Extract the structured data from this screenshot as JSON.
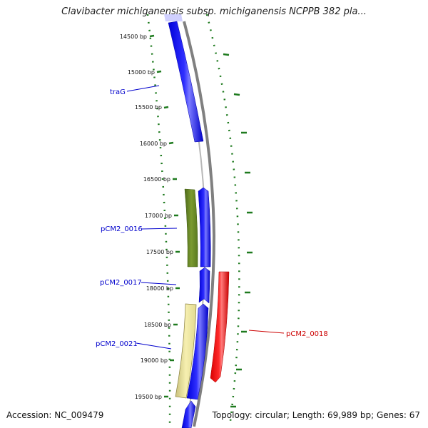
{
  "title": "Clavibacter michiganensis subsp. michiganensis NCPPB 382 pla...",
  "accession": "Accession: NC_009479",
  "summary": "Topology: circular; Length: 69,989 bp; Genes: 67",
  "ruler_ticks": [
    {
      "bp": 14500,
      "label": "14500 bp"
    },
    {
      "bp": 15000,
      "label": "15000 bp"
    },
    {
      "bp": 15500,
      "label": "15500 bp"
    },
    {
      "bp": 16000,
      "label": "16000 bp"
    },
    {
      "bp": 16500,
      "label": "16500 bp"
    },
    {
      "bp": 17000,
      "label": "17000 bp"
    },
    {
      "bp": 17500,
      "label": "17500 bp"
    },
    {
      "bp": 18000,
      "label": "18000 bp"
    },
    {
      "bp": 18500,
      "label": "18500 bp"
    },
    {
      "bp": 19000,
      "label": "19000 bp"
    },
    {
      "bp": 19500,
      "label": "19500 bp"
    }
  ],
  "gene_labels": [
    {
      "id": "traG",
      "label": "traG",
      "color": "#0000cc"
    },
    {
      "id": "pCM2_0016",
      "label": "pCM2_0016",
      "color": "#0000cc"
    },
    {
      "id": "pCM2_0017",
      "label": "pCM2_0017",
      "color": "#0000cc"
    },
    {
      "id": "pCM2_0018",
      "label": "pCM2_0018",
      "color": "#cc0000"
    },
    {
      "id": "pCM2_0021",
      "label": "pCM2_0021",
      "color": "#0000cc"
    }
  ],
  "colors": {
    "forward_cds": "#0000ff",
    "reverse_cds": "#ff0000",
    "olive_feature": "#6b8e23",
    "khaki_feature": "#f0e68c",
    "backbone": "#808080",
    "ruler": "#1e7a1e"
  }
}
